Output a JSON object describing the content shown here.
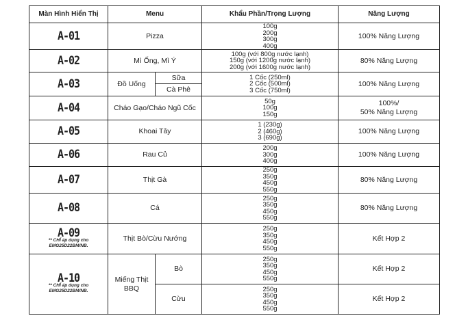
{
  "headers": [
    "Màn Hình Hiển Thị",
    "Menu",
    "Khẩu Phần/Trọng Lượng",
    "Năng Lượng"
  ],
  "rows": [
    {
      "code": "A-01",
      "menu": "Pizza",
      "portions": [
        "100g",
        "200g",
        "300g",
        "400g"
      ],
      "energy": "100% Năng Lượng"
    },
    {
      "code": "A-02",
      "menu": "Mì Ống, Mì Ý",
      "portions": [
        "100g (với 800g nước lạnh)",
        "150g (với 1200g nước lạnh)",
        "200g (với 1600g nước lạnh)"
      ],
      "energy": "80% Năng Lượng"
    },
    {
      "code": "A-03",
      "menu": "Đồ Uống",
      "sub": [
        "Sữa",
        "Cà Phê"
      ],
      "portions": [
        "1 Cốc (250ml)",
        "2 Cốc (500ml)",
        "3 Cốc (750ml)"
      ],
      "energy": "100% Năng Lượng"
    },
    {
      "code": "A-04",
      "menu": "Cháo Gạo/Cháo Ngũ Cốc",
      "portions": [
        "50g",
        "100g",
        "150g"
      ],
      "energy": "100%/",
      "energy2": "50% Năng Lượng"
    },
    {
      "code": "A-05",
      "menu": "Khoai Tây",
      "portions": [
        "1 (230g)",
        "2 (460g)",
        "3 (690g)"
      ],
      "energy": "100% Năng Lượng"
    },
    {
      "code": "A-06",
      "menu": "Rau Củ",
      "portions": [
        "200g",
        "300g",
        "400g"
      ],
      "energy": "100% Năng Lượng"
    },
    {
      "code": "A-07",
      "menu": "Thịt Gà",
      "portions": [
        "250g",
        "350g",
        "450g",
        "550g"
      ],
      "energy": "80% Năng Lượng"
    },
    {
      "code": "A-08",
      "menu": "Cá",
      "portions": [
        "250g",
        "350g",
        "450g",
        "550g"
      ],
      "energy": "80% Năng Lượng"
    },
    {
      "code": "A-09",
      "note1": "** CHỈ áp dụng cho",
      "note2": "EMG25D22BM/NB.",
      "menu": "Thịt Bò/Cừu Nướng",
      "portions": [
        "250g",
        "350g",
        "450g",
        "550g"
      ],
      "energy": "Kết Hợp 2"
    },
    {
      "code": "A-10",
      "note1": "** CHỈ áp dụng cho",
      "note2": "EMG25D22BM/NB.",
      "menu": "Miếng Thịt",
      "menu2": "BBQ",
      "subs": [
        {
          "name": "Bò",
          "portions": [
            "250g",
            "350g",
            "450g",
            "550g"
          ],
          "energy": "Kết Hợp 2"
        },
        {
          "name": "Cừu",
          "portions": [
            "250g",
            "350g",
            "450g",
            "550g"
          ],
          "energy": "Kết Hợp 2"
        }
      ]
    }
  ]
}
